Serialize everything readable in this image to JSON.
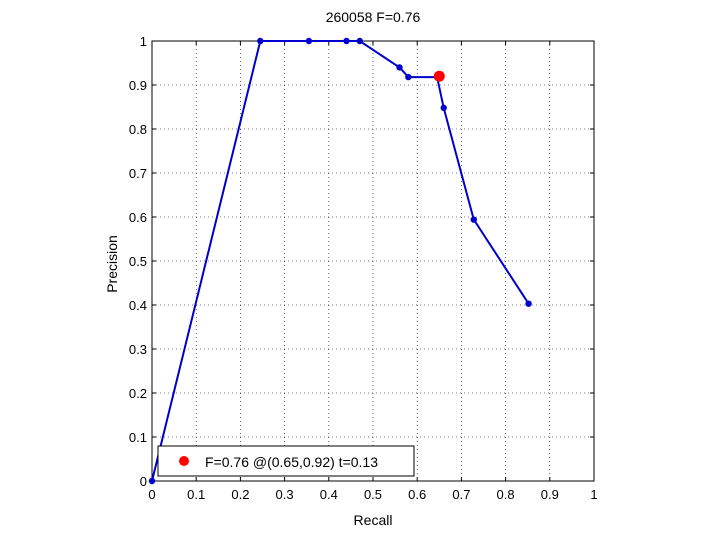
{
  "chart_data": {
    "type": "line",
    "title": "260058 F=0.76",
    "xlabel": "Recall",
    "ylabel": "Precision",
    "xlim": [
      0,
      1
    ],
    "ylim": [
      0,
      1
    ],
    "xticks": [
      0,
      0.1,
      0.2,
      0.3,
      0.4,
      0.5,
      0.6,
      0.7,
      0.8,
      0.9,
      1
    ],
    "yticks": [
      0,
      0.1,
      0.2,
      0.3,
      0.4,
      0.5,
      0.6,
      0.7,
      0.8,
      0.9,
      1
    ],
    "xtick_labels": [
      "0",
      "0.1",
      "0.2",
      "0.3",
      "0.4",
      "0.5",
      "0.6",
      "0.7",
      "0.8",
      "0.9",
      "1"
    ],
    "ytick_labels": [
      "0",
      "0.1",
      "0.2",
      "0.3",
      "0.4",
      "0.5",
      "0.6",
      "0.7",
      "0.8",
      "0.9",
      "1"
    ],
    "grid": true,
    "grid_style": "dotted",
    "series": [
      {
        "color": "#0000cc",
        "marker": "dot",
        "x": [
          0,
          0.245,
          0.355,
          0.44,
          0.47,
          0.56,
          0.58,
          0.645,
          0.66,
          0.728,
          0.852
        ],
        "y": [
          0,
          1.0,
          1.0,
          1.0,
          1.0,
          0.94,
          0.918,
          0.918,
          0.848,
          0.594,
          0.403
        ]
      }
    ],
    "highlight": {
      "x": 0.65,
      "y": 0.92,
      "color": "#ff0000"
    },
    "legend": {
      "position": "bottom-left",
      "label": "F=0.76 @(0.65,0.92) t=0.13"
    }
  }
}
